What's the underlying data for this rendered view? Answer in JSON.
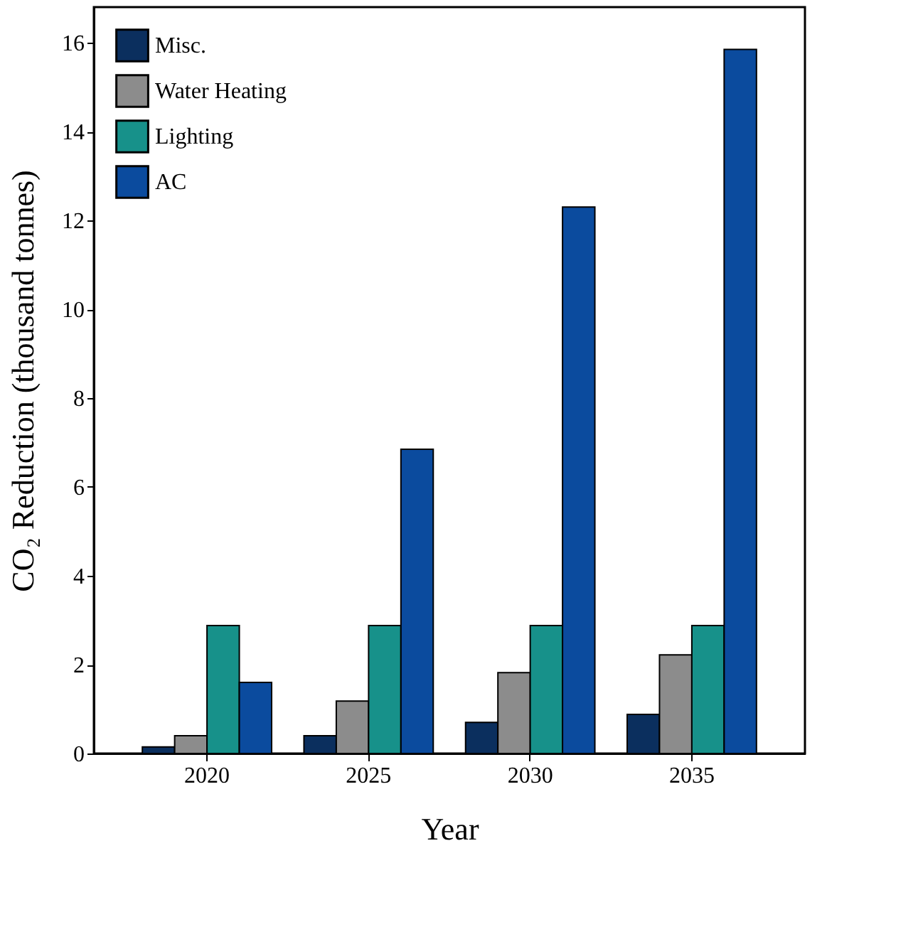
{
  "chart_data": {
    "type": "bar",
    "xlabel": "Year",
    "ylabel": "CO₂ Reduction (thousand tonnes)",
    "categories": [
      "2020",
      "2025",
      "2030",
      "2035"
    ],
    "series": [
      {
        "name": "Misc.",
        "color": "#0b2f5e",
        "values": [
          0.15,
          0.4,
          0.7,
          0.88
        ]
      },
      {
        "name": "Water Heating",
        "color": "#8c8c8c",
        "values": [
          0.4,
          1.18,
          1.82,
          2.22
        ]
      },
      {
        "name": "Lighting",
        "color": "#17918a",
        "values": [
          2.88,
          2.88,
          2.88,
          2.88
        ]
      },
      {
        "name": "AC",
        "color": "#0b4b9e",
        "values": [
          1.6,
          6.85,
          12.3,
          15.85
        ]
      }
    ],
    "ylim": [
      0,
      16.8
    ],
    "yticks": [
      0,
      2,
      4,
      6,
      8,
      10,
      12,
      14,
      16
    ],
    "legend": "top left",
    "grid": false
  }
}
